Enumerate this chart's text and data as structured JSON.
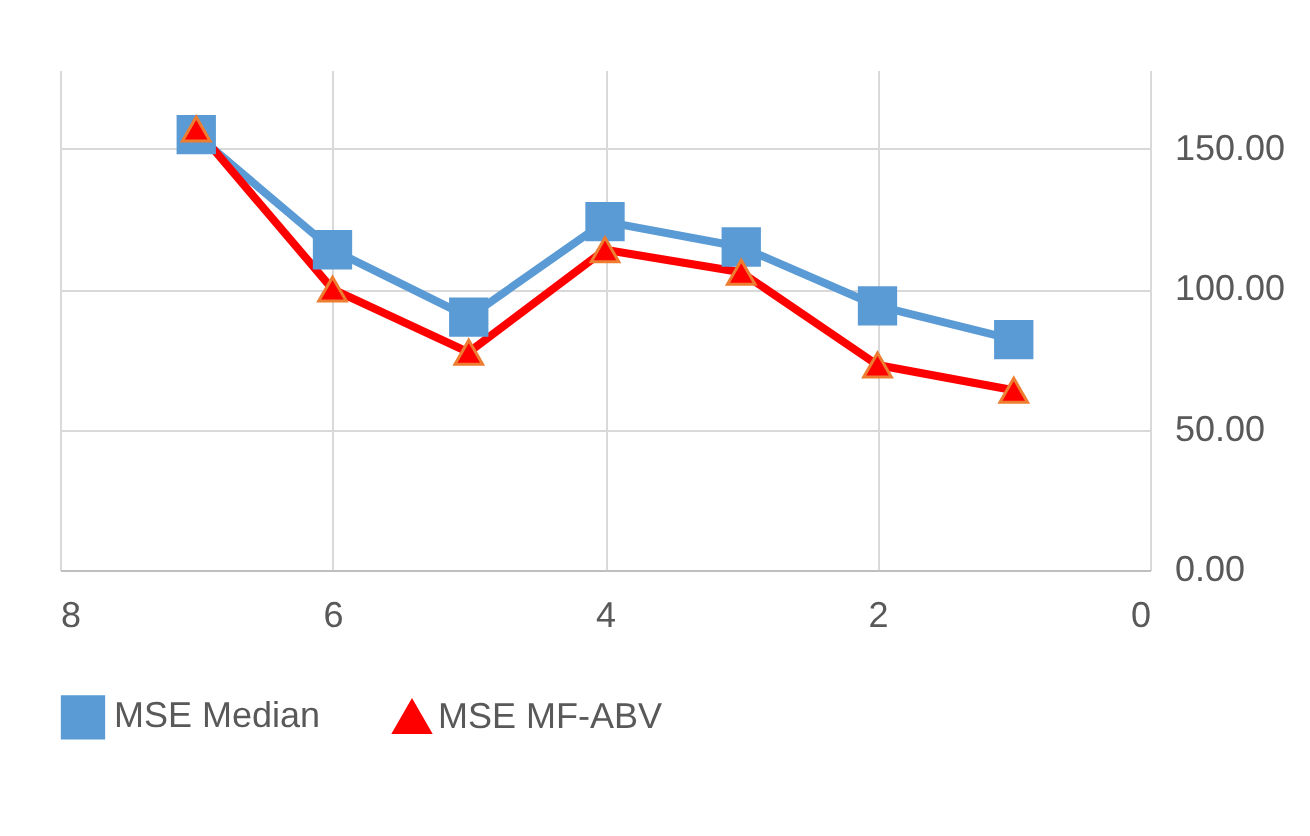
{
  "chart_data": {
    "type": "line",
    "x": [
      7,
      6,
      5,
      4,
      3,
      2,
      1
    ],
    "series": [
      {
        "name": "MSE Median",
        "color": "#5b9bd5",
        "marker": "square",
        "values": [
          155,
          114,
          90,
          124,
          115,
          94,
          82
        ]
      },
      {
        "name": "MSE MF-ABV",
        "color": "#ff0000",
        "marker": "triangle",
        "values": [
          157,
          100,
          77.5,
          114,
          106,
          73,
          64
        ]
      }
    ],
    "xlim": [
      8,
      0
    ],
    "xticks": [
      8,
      6,
      4,
      2,
      0
    ],
    "ylim": [
      0,
      178
    ],
    "yticks": [
      {
        "value": 0,
        "label": "0.00"
      },
      {
        "value": 50,
        "label": "50.00"
      },
      {
        "value": 100,
        "label": "100.00"
      },
      {
        "value": 150,
        "label": "150.00"
      }
    ],
    "grid": true,
    "legend": "bottom",
    "line_style": "solid"
  }
}
